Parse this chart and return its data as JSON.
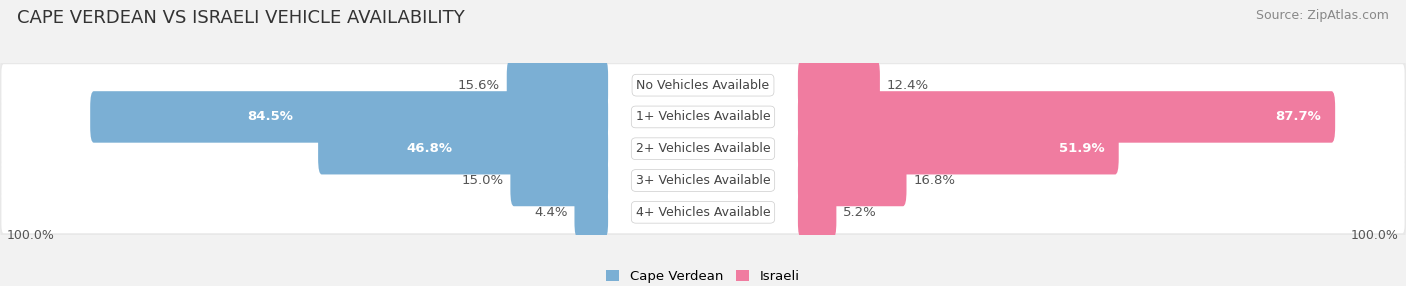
{
  "title": "CAPE VERDEAN VS ISRAELI VEHICLE AVAILABILITY",
  "source": "Source: ZipAtlas.com",
  "categories": [
    "No Vehicles Available",
    "1+ Vehicles Available",
    "2+ Vehicles Available",
    "3+ Vehicles Available",
    "4+ Vehicles Available"
  ],
  "cape_verdean": [
    15.6,
    84.5,
    46.8,
    15.0,
    4.4
  ],
  "israeli": [
    12.4,
    87.7,
    51.9,
    16.8,
    5.2
  ],
  "cape_verdean_color": "#7bafd4",
  "israeli_color": "#f07ca0",
  "bg_color": "#f2f2f2",
  "row_bg_color": "#e8e8e8",
  "row_inner_color": "#ffffff",
  "max_value": 100.0,
  "bar_height": 0.62,
  "label_fontsize": 9.5,
  "title_fontsize": 13,
  "source_fontsize": 9
}
